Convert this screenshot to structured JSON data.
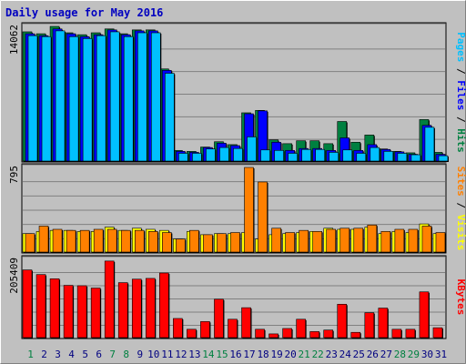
{
  "chart_data": {
    "type": "bar",
    "title": "Daily usage for May 2016",
    "categories": [
      "1",
      "2",
      "3",
      "4",
      "5",
      "6",
      "7",
      "8",
      "9",
      "10",
      "11",
      "12",
      "13",
      "14",
      "15",
      "16",
      "17",
      "18",
      "19",
      "20",
      "21",
      "22",
      "23",
      "24",
      "25",
      "26",
      "27",
      "28",
      "29",
      "30",
      "31"
    ],
    "weekend_days": [
      "1",
      "7",
      "8",
      "14",
      "15",
      "21",
      "22",
      "28",
      "29"
    ],
    "colors": {
      "hits": "#008040",
      "files": "#0000ff",
      "pages": "#00c0ff",
      "visits": "#ffff00",
      "sites": "#ff8000",
      "kbytes": "#ff0000",
      "background": "#c0c0c0",
      "grid": "#808080",
      "weekend_label": "#008040",
      "weekday_label": "#000080"
    },
    "panels": [
      {
        "id": "hits-files-pages",
        "ylim": [
          0,
          14062
        ],
        "top_tick_label": "14062",
        "side_label_parts": [
          {
            "text": "Pages",
            "color": "#00c0ff"
          },
          {
            "text": " / ",
            "color": "#000000"
          },
          {
            "text": "Files",
            "color": "#0000ff"
          },
          {
            "text": " / ",
            "color": "#000000"
          },
          {
            "text": "Hits",
            "color": "#008040"
          }
        ],
        "series": [
          {
            "name": "Hits",
            "values": [
              13500,
              13300,
              14062,
              13400,
              13200,
              13400,
              13800,
              13300,
              13700,
              13700,
              9650,
              1200,
              1100,
              1550,
              2100,
              1800,
              5100,
              5350,
              2300,
              1900,
              2200,
              2200,
              1900,
              4200,
              2050,
              2800,
              1350,
              1100,
              950,
              4400,
              1000
            ]
          },
          {
            "name": "Files",
            "values": [
              13300,
              13100,
              13800,
              13300,
              13000,
              13200,
              13700,
              13200,
              13600,
              13600,
              9500,
              1100,
              1000,
              1500,
              1950,
              1700,
              5000,
              5300,
              2050,
              1200,
              1400,
              1400,
              1200,
              2500,
              1200,
              1800,
              1300,
              1050,
              800,
              3800,
              800
            ]
          },
          {
            "name": "Pages",
            "values": [
              13100,
              13000,
              13600,
              13000,
              12800,
              13100,
              13500,
              13000,
              13400,
              13400,
              9200,
              900,
              900,
              1350,
              1500,
              1400,
              2600,
              1250,
              1200,
              900,
              1300,
              1300,
              1000,
              1250,
              900,
              1500,
              1100,
              900,
              750,
              3600,
              650
            ]
          }
        ]
      },
      {
        "id": "visits-sites",
        "ylim": [
          0,
          795
        ],
        "top_tick_label": "795",
        "side_label_parts": [
          {
            "text": "Sites",
            "color": "#ff8000"
          },
          {
            "text": " / ",
            "color": "#000000"
          },
          {
            "text": "Visits",
            "color": "#ffff00"
          }
        ],
        "series": [
          {
            "name": "Visits",
            "values": [
              180,
              200,
              210,
              210,
              200,
              200,
              240,
              210,
              230,
              220,
              210,
              130,
              200,
              170,
              180,
              180,
              190,
              130,
              170,
              180,
              190,
              200,
              230,
              220,
              220,
              240,
              180,
              200,
              190,
              270,
              180
            ]
          },
          {
            "name": "Sites",
            "values": [
              180,
              250,
              220,
              210,
              210,
              220,
              220,
              210,
              210,
              200,
              190,
              130,
              210,
              170,
              180,
              190,
              800,
              660,
              230,
              190,
              210,
              200,
              220,
              230,
              230,
              260,
              200,
              220,
              220,
              250,
              190
            ]
          }
        ]
      },
      {
        "id": "kbytes",
        "ylim": [
          0,
          205409
        ],
        "top_tick_label": "205409",
        "side_label_parts": [
          {
            "text": "KBytes",
            "color": "#ff0000"
          }
        ],
        "series": [
          {
            "name": "KBytes",
            "values": [
              178000,
              166000,
              155000,
              138000,
              137000,
              131000,
              201000,
              145000,
              154000,
              156000,
              170000,
              52000,
              24000,
              44000,
              102000,
              50000,
              80000,
              24000,
              12000,
              26000,
              50000,
              18000,
              22000,
              89000,
              16000,
              67000,
              79000,
              24000,
              24000,
              121000,
              28000
            ]
          }
        ]
      }
    ]
  }
}
